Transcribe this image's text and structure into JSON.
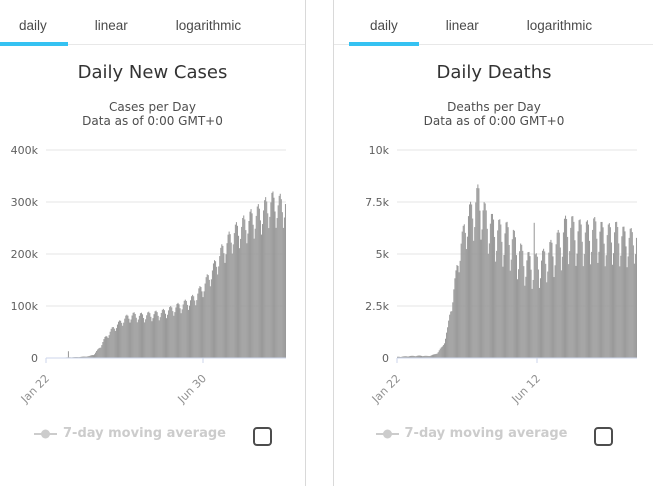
{
  "colors": {
    "accent": "#35c2f2",
    "bar": "#9a9a9a",
    "grid": "#e6e6e6",
    "axis_line": "#ccd6eb",
    "y_label": "#606060",
    "x_label": "#8f8f8f",
    "legend_disabled": "#cccccc",
    "checkbox_border": "#4d4d4d"
  },
  "panels": [
    {
      "tabs": [
        "daily",
        "linear",
        "logarithmic"
      ],
      "active_tab": "daily",
      "title": "Daily New Cases",
      "subtitle_line1": "Cases per Day",
      "subtitle_line2": "Data as of 0:00 GMT+0",
      "legend_label": "7-day moving average",
      "checkbox_checked": false,
      "chart_data": {
        "type": "bar",
        "title": "Daily New Cases",
        "ylabel": "Cases per Day",
        "unit_note": "envelope values in thousands of cases",
        "ymax": 400,
        "y_ticks": [
          {
            "v": 0,
            "label": "0"
          },
          {
            "v": 100,
            "label": "100k"
          },
          {
            "v": 200,
            "label": "200k"
          },
          {
            "v": 300,
            "label": "300k"
          },
          {
            "v": 400,
            "label": "400k"
          }
        ],
        "x_ticks": [
          {
            "t": 0.0,
            "label": "Jan 22"
          },
          {
            "t": 0.654,
            "label": "Jun 30"
          }
        ],
        "days": 230,
        "week_phase": [
          1,
          0.85,
          0.5,
          0.08,
          0.35,
          0.7,
          0.95
        ],
        "envelope_high": [
          [
            0,
            0.4
          ],
          [
            0.06,
            0.9
          ],
          [
            0.1,
            1.5
          ],
          [
            0.14,
            2.2
          ],
          [
            0.18,
            4
          ],
          [
            0.2,
            8
          ],
          [
            0.22,
            20
          ],
          [
            0.25,
            45
          ],
          [
            0.28,
            62
          ],
          [
            0.3,
            70
          ],
          [
            0.33,
            82
          ],
          [
            0.36,
            88
          ],
          [
            0.4,
            87
          ],
          [
            0.44,
            90
          ],
          [
            0.475,
            92
          ],
          [
            0.51,
            98
          ],
          [
            0.55,
            106
          ],
          [
            0.58,
            112
          ],
          [
            0.62,
            124
          ],
          [
            0.66,
            150
          ],
          [
            0.7,
            185
          ],
          [
            0.74,
            225
          ],
          [
            0.78,
            255
          ],
          [
            0.82,
            272
          ],
          [
            0.86,
            288
          ],
          [
            0.9,
            300
          ],
          [
            0.94,
            322
          ],
          [
            0.97,
            315
          ],
          [
            1,
            318
          ]
        ],
        "envelope_low": [
          [
            0,
            0.3
          ],
          [
            0.06,
            0.7
          ],
          [
            0.1,
            1.1
          ],
          [
            0.14,
            1.7
          ],
          [
            0.18,
            3
          ],
          [
            0.2,
            6
          ],
          [
            0.22,
            15
          ],
          [
            0.25,
            34
          ],
          [
            0.28,
            48
          ],
          [
            0.3,
            55
          ],
          [
            0.33,
            64
          ],
          [
            0.36,
            68
          ],
          [
            0.4,
            66
          ],
          [
            0.44,
            69
          ],
          [
            0.475,
            71
          ],
          [
            0.51,
            76
          ],
          [
            0.55,
            82
          ],
          [
            0.58,
            87
          ],
          [
            0.62,
            97
          ],
          [
            0.66,
            117
          ],
          [
            0.7,
            145
          ],
          [
            0.74,
            175
          ],
          [
            0.78,
            198
          ],
          [
            0.82,
            210
          ],
          [
            0.86,
            222
          ],
          [
            0.9,
            232
          ],
          [
            0.94,
            248
          ],
          [
            0.97,
            243
          ],
          [
            1,
            245
          ]
        ],
        "spikes": [
          [
            21,
            13
          ]
        ]
      }
    },
    {
      "tabs": [
        "daily",
        "linear",
        "logarithmic"
      ],
      "active_tab": "daily",
      "title": "Daily Deaths",
      "subtitle_line1": "Deaths per Day",
      "subtitle_line2": "Data as of 0:00 GMT+0",
      "legend_label": "7-day moving average",
      "checkbox_checked": false,
      "chart_data": {
        "type": "bar",
        "title": "Daily Deaths",
        "ylabel": "Deaths per Day",
        "unit_note": "envelope values in thousands of deaths",
        "ymax": 10,
        "y_ticks": [
          {
            "v": 0,
            "label": "0"
          },
          {
            "v": 2.5,
            "label": "2.5k"
          },
          {
            "v": 5,
            "label": "5k"
          },
          {
            "v": 7.5,
            "label": "7.5k"
          },
          {
            "v": 10,
            "label": "10k"
          }
        ],
        "x_ticks": [
          {
            "t": 0.0,
            "label": "Jan 22"
          },
          {
            "t": 0.583,
            "label": "Jun 12"
          }
        ],
        "days": 230,
        "week_phase": [
          1,
          0.9,
          0.55,
          0.05,
          0.3,
          0.75,
          0.98
        ],
        "envelope_high": [
          [
            0,
            0.06
          ],
          [
            0.05,
            0.1
          ],
          [
            0.09,
            0.12
          ],
          [
            0.13,
            0.1
          ],
          [
            0.16,
            0.2
          ],
          [
            0.19,
            0.6
          ],
          [
            0.21,
            1.5
          ],
          [
            0.23,
            3.0
          ],
          [
            0.26,
            5.5
          ],
          [
            0.29,
            7.2
          ],
          [
            0.31,
            7.6
          ],
          [
            0.34,
            8.45
          ],
          [
            0.36,
            7.6
          ],
          [
            0.38,
            7.1
          ],
          [
            0.42,
            6.7
          ],
          [
            0.47,
            6.5
          ],
          [
            0.5,
            5.9
          ],
          [
            0.53,
            5.2
          ],
          [
            0.57,
            5.0
          ],
          [
            0.6,
            5.1
          ],
          [
            0.63,
            5.5
          ],
          [
            0.67,
            6.1
          ],
          [
            0.71,
            7.0
          ],
          [
            0.75,
            6.7
          ],
          [
            0.79,
            6.6
          ],
          [
            0.83,
            6.8
          ],
          [
            0.87,
            6.4
          ],
          [
            0.91,
            6.6
          ],
          [
            0.95,
            6.3
          ],
          [
            1,
            6.2
          ]
        ],
        "envelope_low": [
          [
            0,
            0.04
          ],
          [
            0.05,
            0.07
          ],
          [
            0.09,
            0.09
          ],
          [
            0.13,
            0.08
          ],
          [
            0.16,
            0.15
          ],
          [
            0.19,
            0.45
          ],
          [
            0.21,
            1.2
          ],
          [
            0.23,
            2.4
          ],
          [
            0.26,
            4.2
          ],
          [
            0.29,
            5.2
          ],
          [
            0.31,
            5.4
          ],
          [
            0.34,
            5.8
          ],
          [
            0.36,
            5.3
          ],
          [
            0.38,
            4.9
          ],
          [
            0.42,
            4.4
          ],
          [
            0.47,
            4.1
          ],
          [
            0.5,
            3.7
          ],
          [
            0.53,
            3.4
          ],
          [
            0.57,
            3.2
          ],
          [
            0.6,
            3.3
          ],
          [
            0.63,
            3.6
          ],
          [
            0.67,
            3.9
          ],
          [
            0.71,
            4.4
          ],
          [
            0.75,
            4.3
          ],
          [
            0.79,
            4.3
          ],
          [
            0.83,
            4.5
          ],
          [
            0.87,
            4.3
          ],
          [
            0.91,
            4.4
          ],
          [
            0.95,
            4.2
          ],
          [
            1,
            4.5
          ]
        ],
        "spikes": [
          [
            131,
            6.5
          ]
        ]
      }
    }
  ]
}
